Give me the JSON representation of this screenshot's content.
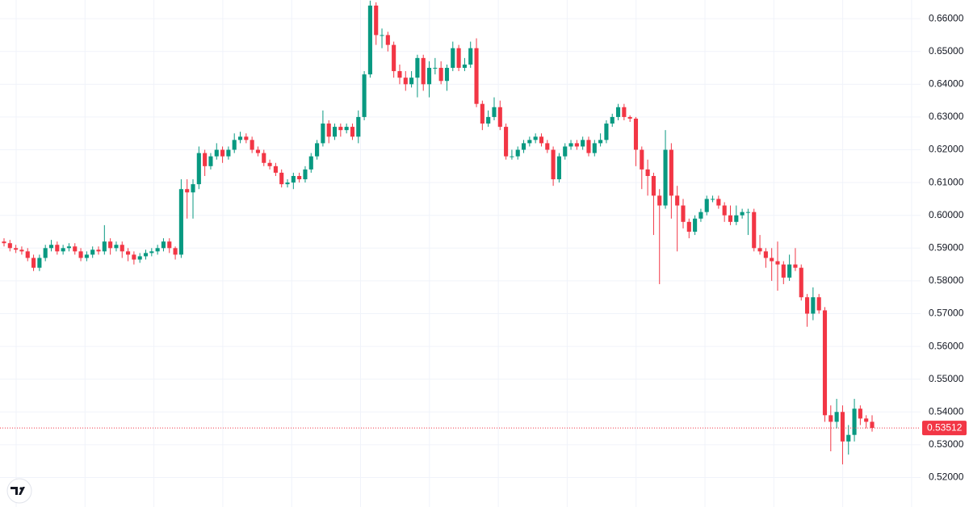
{
  "chart_data": {
    "type": "candlestick",
    "up_color": "#089981",
    "down_color": "#f23645",
    "ylim": [
      0.511,
      0.6657
    ],
    "yticks": [
      {
        "value": 0.52,
        "label": "0.52000"
      },
      {
        "value": 0.53,
        "label": "0.53000"
      },
      {
        "value": 0.54,
        "label": "0.54000"
      },
      {
        "value": 0.55,
        "label": "0.55000"
      },
      {
        "value": 0.56,
        "label": "0.56000"
      },
      {
        "value": 0.57,
        "label": "0.57000"
      },
      {
        "value": 0.58,
        "label": "0.58000"
      },
      {
        "value": 0.59,
        "label": "0.59000"
      },
      {
        "value": 0.6,
        "label": "0.60000"
      },
      {
        "value": 0.61,
        "label": "0.61000"
      },
      {
        "value": 0.62,
        "label": "0.62000"
      },
      {
        "value": 0.63,
        "label": "0.63000"
      },
      {
        "value": 0.64,
        "label": "0.64000"
      },
      {
        "value": 0.65,
        "label": "0.65000"
      },
      {
        "value": 0.66,
        "label": "0.66000"
      }
    ],
    "grid": true,
    "last_price": 0.53512,
    "open": [
      0.592,
      0.5915,
      0.59,
      0.5895,
      0.589,
      0.587,
      0.584,
      0.587,
      0.59,
      0.591,
      0.589,
      0.59,
      0.5905,
      0.589,
      0.587,
      0.588,
      0.5895,
      0.589,
      0.592,
      0.59,
      0.591,
      0.589,
      0.588,
      0.5865,
      0.5875,
      0.5885,
      0.589,
      0.59,
      0.592,
      0.59,
      0.588,
      0.608,
      0.607,
      0.6095,
      0.619,
      0.615,
      0.618,
      0.62,
      0.618,
      0.62,
      0.623,
      0.624,
      0.623,
      0.62,
      0.619,
      0.616,
      0.615,
      0.613,
      0.6095,
      0.61,
      0.612,
      0.611,
      0.614,
      0.618,
      0.622,
      0.628,
      0.624,
      0.627,
      0.626,
      0.627,
      0.624,
      0.63,
      0.643,
      0.664,
      0.655,
      0.655,
      0.652,
      0.644,
      0.642,
      0.64,
      0.642,
      0.648,
      0.64,
      0.645,
      0.645,
      0.641,
      0.645,
      0.651,
      0.645,
      0.646,
      0.651,
      0.634,
      0.628,
      0.63,
      0.633,
      0.627,
      0.618,
      0.618,
      0.62,
      0.622,
      0.623,
      0.624,
      0.622,
      0.62,
      0.611,
      0.618,
      0.621,
      0.622,
      0.621,
      0.623,
      0.619,
      0.622,
      0.623,
      0.628,
      0.63,
      0.633,
      0.63,
      0.6295,
      0.62,
      0.614,
      0.612,
      0.606,
      0.603,
      0.62,
      0.606,
      0.603,
      0.598,
      0.595,
      0.599,
      0.601,
      0.605,
      0.605,
      0.603,
      0.6,
      0.598,
      0.6,
      0.601,
      0.601,
      0.59,
      0.589,
      0.587,
      0.586,
      0.585,
      0.581,
      0.585,
      0.584,
      0.575,
      0.57,
      0.575,
      0.571,
      0.539,
      0.537,
      0.54,
      0.531,
      0.533,
      0.541,
      0.538,
      0.537
    ],
    "high": [
      0.593,
      0.5925,
      0.591,
      0.5905,
      0.59,
      0.588,
      0.588,
      0.591,
      0.5925,
      0.592,
      0.591,
      0.5915,
      0.5915,
      0.59,
      0.589,
      0.5905,
      0.5905,
      0.597,
      0.593,
      0.592,
      0.592,
      0.59,
      0.589,
      0.5885,
      0.5895,
      0.59,
      0.591,
      0.593,
      0.593,
      0.5905,
      0.611,
      0.611,
      0.611,
      0.621,
      0.62,
      0.619,
      0.622,
      0.621,
      0.621,
      0.625,
      0.6255,
      0.625,
      0.624,
      0.621,
      0.62,
      0.617,
      0.616,
      0.614,
      0.611,
      0.613,
      0.613,
      0.615,
      0.619,
      0.623,
      0.632,
      0.629,
      0.628,
      0.628,
      0.628,
      0.628,
      0.632,
      0.644,
      0.6655,
      0.665,
      0.657,
      0.656,
      0.653,
      0.646,
      0.644,
      0.644,
      0.649,
      0.649,
      0.647,
      0.648,
      0.647,
      0.646,
      0.653,
      0.652,
      0.648,
      0.653,
      0.654,
      0.635,
      0.632,
      0.636,
      0.635,
      0.628,
      0.62,
      0.621,
      0.623,
      0.624,
      0.625,
      0.625,
      0.623,
      0.621,
      0.619,
      0.622,
      0.623,
      0.623,
      0.624,
      0.624,
      0.623,
      0.625,
      0.629,
      0.631,
      0.634,
      0.634,
      0.6305,
      0.63,
      0.621,
      0.617,
      0.613,
      0.608,
      0.626,
      0.622,
      0.609,
      0.605,
      0.599,
      0.6,
      0.602,
      0.606,
      0.606,
      0.606,
      0.604,
      0.603,
      0.603,
      0.602,
      0.602,
      0.602,
      0.594,
      0.59,
      0.59,
      0.592,
      0.586,
      0.588,
      0.59,
      0.585,
      0.576,
      0.578,
      0.576,
      0.572,
      0.542,
      0.544,
      0.542,
      0.536,
      0.544,
      0.542,
      0.539,
      0.539
    ],
    "low": [
      0.5905,
      0.589,
      0.5885,
      0.588,
      0.586,
      0.583,
      0.583,
      0.586,
      0.589,
      0.588,
      0.588,
      0.589,
      0.588,
      0.586,
      0.586,
      0.587,
      0.588,
      0.588,
      0.588,
      0.589,
      0.587,
      0.586,
      0.585,
      0.5855,
      0.5865,
      0.5875,
      0.588,
      0.589,
      0.5885,
      0.5865,
      0.587,
      0.599,
      0.599,
      0.608,
      0.612,
      0.614,
      0.617,
      0.616,
      0.617,
      0.619,
      0.622,
      0.622,
      0.619,
      0.618,
      0.615,
      0.614,
      0.612,
      0.6085,
      0.6085,
      0.608,
      0.61,
      0.61,
      0.613,
      0.617,
      0.621,
      0.622,
      0.623,
      0.624,
      0.625,
      0.623,
      0.622,
      0.629,
      0.642,
      0.652,
      0.651,
      0.65,
      0.642,
      0.64,
      0.638,
      0.639,
      0.636,
      0.638,
      0.636,
      0.643,
      0.64,
      0.638,
      0.644,
      0.644,
      0.644,
      0.645,
      0.633,
      0.626,
      0.627,
      0.629,
      0.626,
      0.617,
      0.617,
      0.617,
      0.619,
      0.621,
      0.622,
      0.621,
      0.619,
      0.609,
      0.61,
      0.617,
      0.62,
      0.62,
      0.62,
      0.618,
      0.618,
      0.621,
      0.622,
      0.627,
      0.629,
      0.629,
      0.6285,
      0.615,
      0.608,
      0.606,
      0.594,
      0.579,
      0.602,
      0.599,
      0.589,
      0.596,
      0.593,
      0.594,
      0.598,
      0.6,
      0.604,
      0.602,
      0.598,
      0.597,
      0.597,
      0.599,
      0.594,
      0.589,
      0.588,
      0.584,
      0.58,
      0.577,
      0.579,
      0.58,
      0.583,
      0.574,
      0.566,
      0.568,
      0.57,
      0.537,
      0.528,
      0.535,
      0.524,
      0.527,
      0.531,
      0.536,
      0.535,
      0.534
    ],
    "close": [
      0.5915,
      0.59,
      0.5895,
      0.589,
      0.587,
      0.584,
      0.587,
      0.59,
      0.591,
      0.589,
      0.59,
      0.5905,
      0.589,
      0.587,
      0.588,
      0.5895,
      0.589,
      0.592,
      0.59,
      0.591,
      0.589,
      0.588,
      0.5865,
      0.5875,
      0.5885,
      0.589,
      0.59,
      0.592,
      0.59,
      0.588,
      0.608,
      0.607,
      0.6095,
      0.619,
      0.615,
      0.618,
      0.62,
      0.618,
      0.62,
      0.623,
      0.624,
      0.623,
      0.62,
      0.619,
      0.616,
      0.615,
      0.613,
      0.6095,
      0.61,
      0.612,
      0.611,
      0.614,
      0.618,
      0.622,
      0.628,
      0.624,
      0.627,
      0.626,
      0.627,
      0.624,
      0.63,
      0.643,
      0.664,
      0.655,
      0.655,
      0.652,
      0.644,
      0.642,
      0.64,
      0.642,
      0.648,
      0.64,
      0.645,
      0.645,
      0.641,
      0.645,
      0.651,
      0.645,
      0.646,
      0.651,
      0.634,
      0.628,
      0.63,
      0.633,
      0.627,
      0.618,
      0.618,
      0.62,
      0.622,
      0.623,
      0.624,
      0.622,
      0.62,
      0.611,
      0.618,
      0.621,
      0.622,
      0.621,
      0.623,
      0.619,
      0.622,
      0.623,
      0.628,
      0.63,
      0.633,
      0.63,
      0.6295,
      0.62,
      0.614,
      0.612,
      0.606,
      0.603,
      0.62,
      0.606,
      0.603,
      0.598,
      0.595,
      0.599,
      0.601,
      0.605,
      0.605,
      0.603,
      0.6,
      0.598,
      0.6,
      0.601,
      0.601,
      0.59,
      0.589,
      0.587,
      0.586,
      0.585,
      0.581,
      0.585,
      0.584,
      0.575,
      0.57,
      0.575,
      0.571,
      0.539,
      0.537,
      0.54,
      0.531,
      0.533,
      0.541,
      0.538,
      0.537,
      0.53512
    ]
  }
}
